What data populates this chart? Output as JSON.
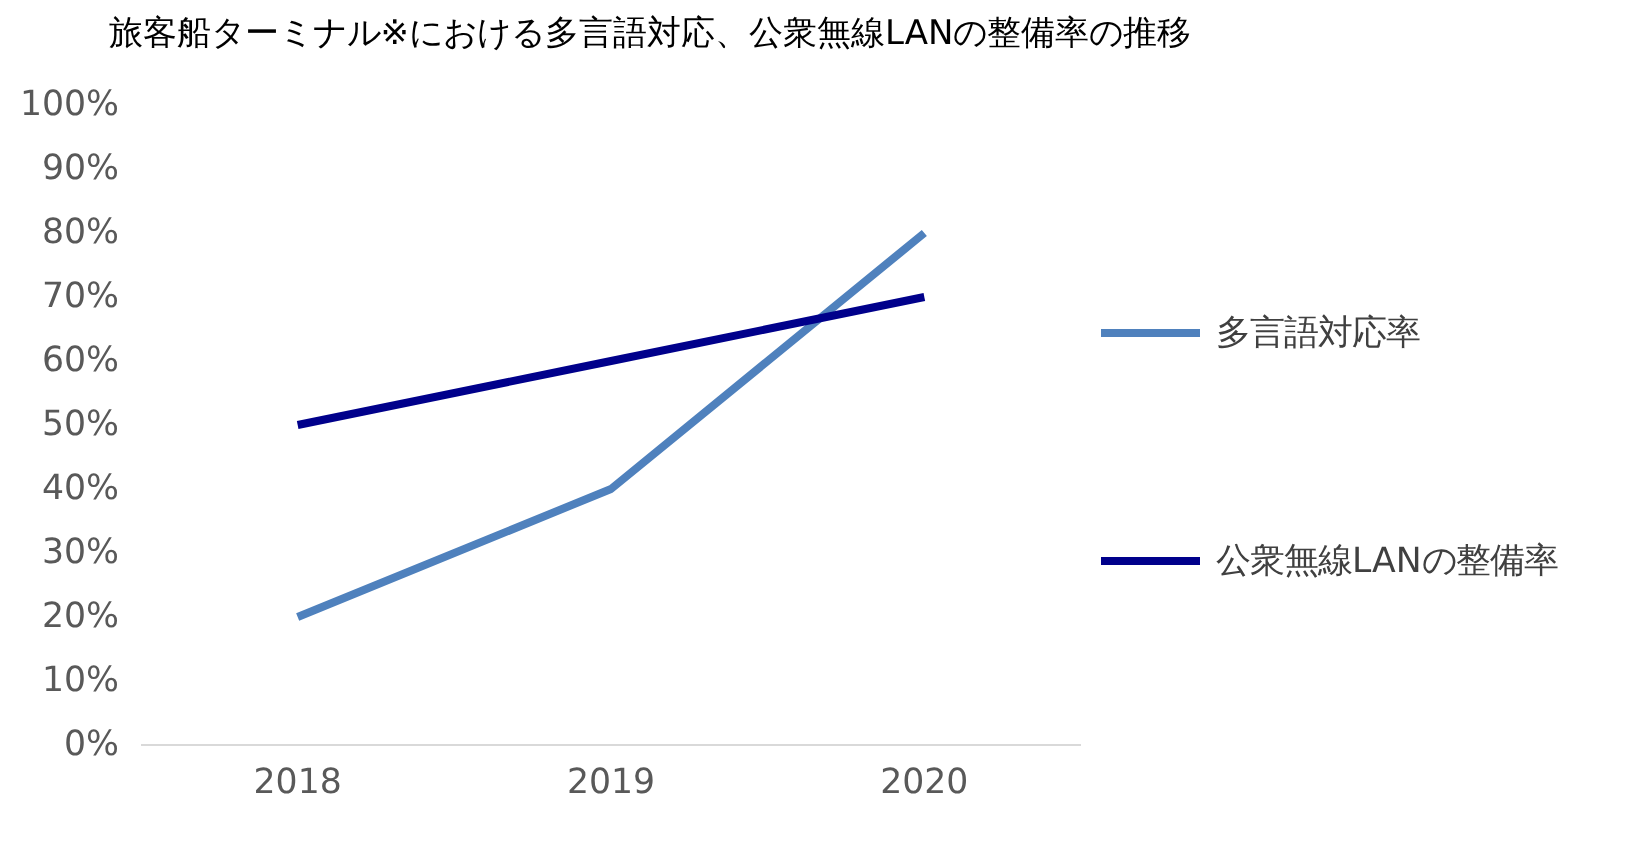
{
  "chart_data": {
    "type": "line",
    "title": "旅客船ターミナル※における多言語対応、公衆無線LANの整備率の推移",
    "categories": [
      "2018",
      "2019",
      "2020"
    ],
    "series": [
      {
        "name": "多言語対応率",
        "color": "#4f81bd",
        "values": [
          20,
          40,
          80
        ]
      },
      {
        "name": "公衆無線LANの整備率",
        "color": "#00008b",
        "values": [
          50,
          60,
          70
        ]
      }
    ],
    "ylim": [
      0,
      100
    ],
    "yticks": [
      {
        "value": 0,
        "label": "0%"
      },
      {
        "value": 10,
        "label": "10%"
      },
      {
        "value": 20,
        "label": "20%"
      },
      {
        "value": 30,
        "label": "30%"
      },
      {
        "value": 40,
        "label": "40%"
      },
      {
        "value": 50,
        "label": "50%"
      },
      {
        "value": 60,
        "label": "60%"
      },
      {
        "value": 70,
        "label": "70%"
      },
      {
        "value": 80,
        "label": "80%"
      },
      {
        "value": 90,
        "label": "90%"
      },
      {
        "value": 100,
        "label": "100%"
      }
    ],
    "grid": false,
    "legend": "right",
    "marker": "none",
    "line_style": "solid"
  }
}
